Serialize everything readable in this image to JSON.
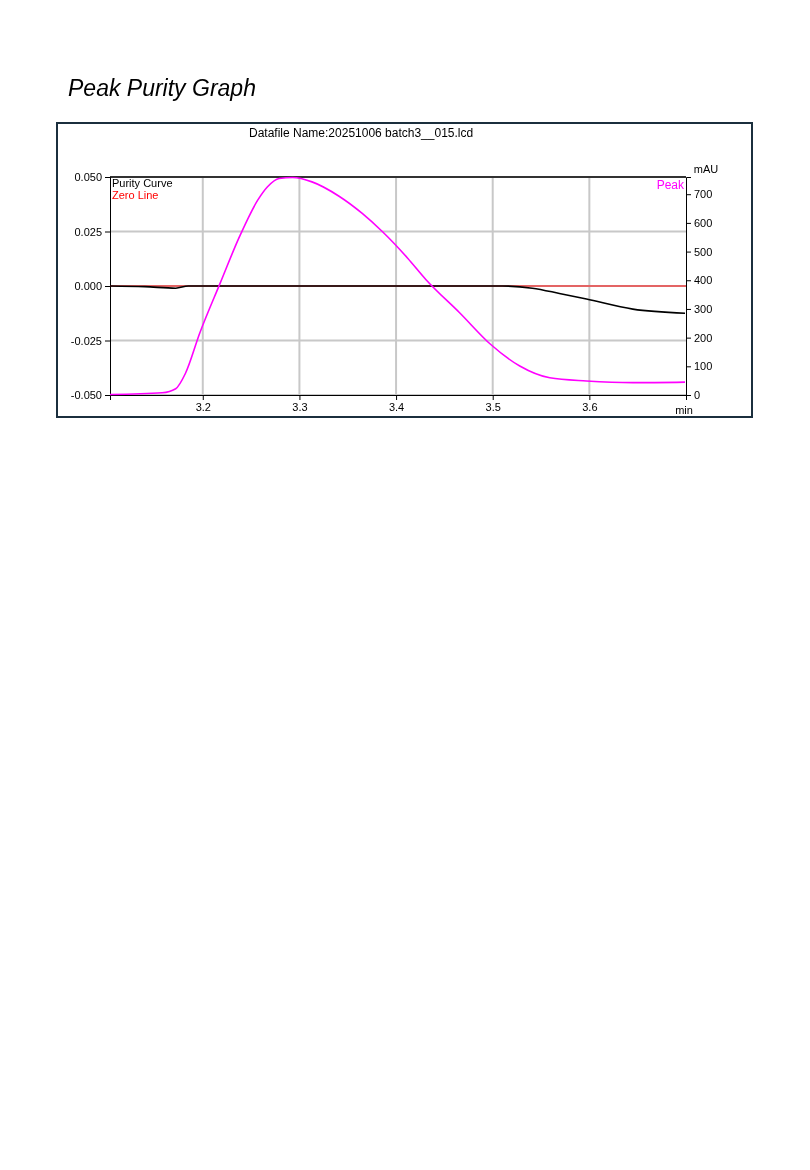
{
  "chart_data": {
    "type": "line",
    "title": "Peak Purity Graph",
    "annotations": [
      "Datafile Name:20251006 batch3__015.lcd"
    ],
    "xlabel": "min",
    "y2label": "mAU",
    "xlim": [
      3.104,
      3.7
    ],
    "xticks": [
      3.2,
      3.3,
      3.4,
      3.5,
      3.6
    ],
    "ylim": [
      -0.05,
      0.05
    ],
    "yticks": [
      {
        "value": 0.05,
        "label": "0.050"
      },
      {
        "value": 0.025,
        "label": "0.025"
      },
      {
        "value": 0,
        "label": "0.000"
      },
      {
        "value": -0.025,
        "label": "-0.025"
      },
      {
        "value": -0.05,
        "label": "-0.050"
      }
    ],
    "y2lim": [
      0,
      760
    ],
    "y2ticks": [
      0,
      100,
      200,
      300,
      400,
      500,
      600,
      700
    ],
    "grid": true,
    "marker": "none",
    "line_style": "solid",
    "ref_lines": [
      {
        "axis": "y",
        "value": 0,
        "label": "Zero Line",
        "color": "#ff0000"
      }
    ],
    "series": [
      {
        "name": "Purity Curve",
        "color": "#000000",
        "x": [
          3.104,
          3.14,
          3.172,
          3.185,
          3.3,
          3.4,
          3.51,
          3.541,
          3.569,
          3.597,
          3.645,
          3.699
        ],
        "values": [
          0,
          -0.0003,
          -0.001,
          0,
          0,
          0,
          0,
          -0.001,
          -0.0034,
          -0.006,
          -0.0106,
          -0.0125
        ]
      },
      {
        "name": "Peak",
        "color": "#ff00ff",
        "axis": "y2",
        "x": [
          3.104,
          3.158,
          3.172,
          3.182,
          3.197,
          3.218,
          3.238,
          3.257,
          3.267,
          3.279,
          3.293,
          3.313,
          3.341,
          3.365,
          3.386,
          3.412,
          3.431,
          3.466,
          3.498,
          3.528,
          3.559,
          3.597,
          3.645,
          3.699
        ],
        "values": [
          2,
          8,
          22,
          75,
          217,
          390,
          552,
          680,
          726,
          755,
          758,
          743,
          693,
          633,
          569,
          477,
          402,
          286,
          176,
          101,
          60,
          49,
          43,
          45
        ]
      }
    ]
  }
}
